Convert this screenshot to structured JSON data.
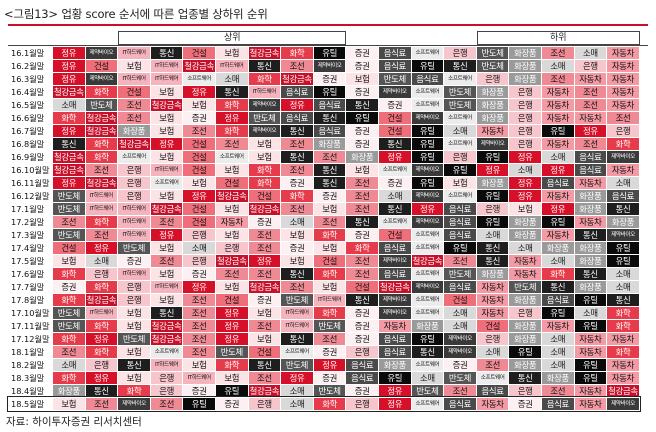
{
  "title": "<그림13> 업황 score 순서에 따른 업종별 상하위 순위",
  "top_label": "상위",
  "bottom_label": "하위",
  "source": "자료: 하이투자증권 리서치센터",
  "sector_colors": {
    "정유": "#d7102a",
    "화학": "#e63b4a",
    "제약바이오": "#3a3a3a",
    "IT하드웨어": "#f5b3bd",
    "통신": "#1e1e1e",
    "건설": "#ee6e7a",
    "보험": "#fbe3e6",
    "철강금속": "#c7102a",
    "유틸": "#0a0a0a",
    "증권": "#fdf0f2",
    "음식료": "#4a4a4a",
    "소프트웨어": "#ececec",
    "은행": "#f7c6cd",
    "반도체": "#555555",
    "화장품": "#9a9a9a",
    "조선": "#ef8a95",
    "소매": "#d9d9d9",
    "자동차": "#f39aa5"
  },
  "chart_data": {
    "type": "table",
    "title": "<그림13> 업황 score 순서에 따른 업종별 상하위 순위",
    "columns_note": "상위 → 하위",
    "rows": [
      {
        "month": "16.1월말",
        "ranks": [
          "정유",
          "제약바이오",
          "IT하드웨어",
          "통신",
          "건설",
          "보험",
          "철강금속",
          "화학",
          "유틸",
          "증권",
          "음식료",
          "소프트웨어",
          "은행",
          "반도체",
          "화장품",
          "조선",
          "소매",
          "자동차"
        ]
      },
      {
        "month": "16.2월말",
        "ranks": [
          "정유",
          "건설",
          "보험",
          "IT하드웨어",
          "철강금속",
          "IT하드웨어",
          "통신",
          "조선",
          "제약바이오",
          "증권",
          "음식료",
          "유틸",
          "통신",
          "반도체",
          "화장품",
          "소매",
          "은행",
          "자동차"
        ]
      },
      {
        "month": "16.3월말",
        "ranks": [
          "정유",
          "제약바이오",
          "IT하드웨어",
          "IT하드웨어",
          "소프트웨어",
          "소매",
          "화학",
          "철강금속",
          "증권",
          "보험",
          "반도체",
          "음식료",
          "소프트웨어",
          "은행",
          "화장품",
          "조선",
          "자동차",
          "자동차"
        ]
      },
      {
        "month": "16.4월말",
        "ranks": [
          "철강금속",
          "화학",
          "건설",
          "보험",
          "정유",
          "통신",
          "IT하드웨어",
          "음식료",
          "유틸",
          "증권",
          "제약바이오",
          "소프트웨어",
          "반도체",
          "화장품",
          "은행",
          "자동차",
          "조선",
          "자동차"
        ]
      },
      {
        "month": "16.5월말",
        "ranks": [
          "소매",
          "반도체",
          "조선",
          "철강금속",
          "보험",
          "화학",
          "제약바이오",
          "정유",
          "음식료",
          "통신",
          "증권",
          "소프트웨어",
          "반도체",
          "화장품",
          "은행",
          "자동차",
          "조선",
          "자동차"
        ]
      },
      {
        "month": "16.6월말",
        "ranks": [
          "화학",
          "철강금속",
          "조선",
          "보험",
          "증권",
          "정유",
          "반도체",
          "음식료",
          "통신",
          "유틸",
          "건설",
          "제약바이오",
          "소프트웨어",
          "화장품",
          "은행",
          "자동차",
          "자동차",
          "조선"
        ]
      },
      {
        "month": "16.7월말",
        "ranks": [
          "정유",
          "철강금속",
          "화장품",
          "보험",
          "조선",
          "화학",
          "제약바이오",
          "통신",
          "음식료",
          "증권",
          "건설",
          "유틸",
          "소매",
          "자동차",
          "은행",
          "유틸",
          "정유",
          "은행"
        ]
      },
      {
        "month": "16.8월말",
        "ranks": [
          "통신",
          "화학",
          "철강금속",
          "정유",
          "건설",
          "조선",
          "보험",
          "조선",
          "화장품",
          "증권",
          "통신",
          "유틸",
          "소프트웨어",
          "제약바이오",
          "은행",
          "자동차",
          "조선",
          "화학"
        ]
      },
      {
        "month": "16.9월말",
        "ranks": [
          "철강금속",
          "화학",
          "소프트웨어",
          "보험",
          "건설",
          "소프트웨어",
          "보험",
          "통신",
          "조선",
          "화장품",
          "정유",
          "유틸",
          "은행",
          "유틸",
          "정유",
          "소매",
          "음식료",
          "제약바이오"
        ]
      },
      {
        "month": "16.10월말",
        "ranks": [
          "철강금속",
          "조선",
          "은행",
          "IT하드웨어",
          "건설",
          "보험",
          "화학",
          "조선",
          "통신",
          "보험",
          "소프트웨어",
          "제약바이오",
          "유틸",
          "정유",
          "소매",
          "정유",
          "음식료",
          "자동차"
        ]
      },
      {
        "month": "16.11월말",
        "ranks": [
          "정유",
          "철강금속",
          "은행",
          "소프트웨어",
          "보험",
          "건설",
          "화학",
          "증권",
          "통신",
          "조선",
          "증권",
          "유틸",
          "보험",
          "화장품",
          "정유",
          "음식료",
          "자동차",
          "소매"
        ]
      },
      {
        "month": "16.12월말",
        "ranks": [
          "반도체",
          "IT하드웨어",
          "은행",
          "보험",
          "정유",
          "철강금속",
          "건설",
          "화학",
          "증권",
          "조선",
          "소매",
          "제약바이오",
          "소프트웨어",
          "유틸",
          "정유",
          "자동차",
          "화장품",
          "음식료"
        ]
      },
      {
        "month": "17.1월말",
        "ranks": [
          "반도체",
          "IT하드웨어",
          "IT하드웨어",
          "철강금속",
          "건설",
          "보험",
          "철강금속",
          "조선",
          "보험",
          "조선",
          "통신",
          "정유",
          "음식료",
          "은행",
          "보험",
          "정유",
          "화장품",
          "통신"
        ]
      },
      {
        "month": "17.2월말",
        "ranks": [
          "조선",
          "화학",
          "IT하드웨어",
          "조선",
          "건설",
          "자동차",
          "증권",
          "소매",
          "조선",
          "통신",
          "소프트웨어",
          "제약바이오",
          "음식료",
          "유틸",
          "화장품",
          "유틸",
          "자동차",
          "화장품"
        ]
      },
      {
        "month": "17.3월말",
        "ranks": [
          "반도체",
          "조선",
          "IT하드웨어",
          "정유",
          "은행",
          "보험",
          "조선",
          "보험",
          "화학",
          "증권",
          "건설",
          "소프트웨어",
          "음식료",
          "소매",
          "화장품",
          "자동차",
          "통신",
          "제약바이오"
        ]
      },
      {
        "month": "17.4월말",
        "ranks": [
          "건설",
          "정유",
          "반도체",
          "보험",
          "소매",
          "은행",
          "조선",
          "증권",
          "보험",
          "화학",
          "음식료",
          "소프트웨어",
          "유틸",
          "통신",
          "소매",
          "화장품",
          "화장품",
          "유틸"
        ]
      },
      {
        "month": "17.5월말",
        "ranks": [
          "보험",
          "소매",
          "증권",
          "조선",
          "은행",
          "철강금속",
          "정유",
          "보험",
          "건설",
          "조선",
          "제약바이오",
          "철강금속",
          "조선",
          "통신",
          "자동차",
          "소매",
          "화장품",
          "유틸"
        ]
      },
      {
        "month": "17.6월말",
        "ranks": [
          "화학",
          "은행",
          "IT하드웨어",
          "보험",
          "증권",
          "조선",
          "조선",
          "통신",
          "화학",
          "조선",
          "음식료",
          "소프트웨어",
          "반도체",
          "화장품",
          "자동차",
          "화학",
          "통신",
          "소매"
        ]
      },
      {
        "month": "17.7월말",
        "ranks": [
          "증권",
          "화학",
          "은행",
          "IT하드웨어",
          "정유",
          "보험",
          "철강금속",
          "조선",
          "보험",
          "건설",
          "철강금속",
          "제약바이오",
          "음식료",
          "자동차",
          "반도체",
          "통신",
          "화장품",
          "소매"
        ]
      },
      {
        "month": "17.8월말",
        "ranks": [
          "화학",
          "철강금속",
          "은행",
          "보험",
          "조선",
          "건설",
          "증권",
          "반도체",
          "IT하드웨어",
          "통신",
          "제약바이오",
          "소프트웨어",
          "건설",
          "자동차",
          "화장품",
          "음식료",
          "유틸",
          "통신"
        ]
      },
      {
        "month": "17.10월말",
        "ranks": [
          "반도체",
          "IT하드웨어",
          "보험",
          "통신",
          "조선",
          "정유",
          "보험",
          "IT하드웨어",
          "화학",
          "증권",
          "제약바이오",
          "소프트웨어",
          "소매",
          "자동차",
          "은행",
          "유틸",
          "소매",
          "화학"
        ]
      },
      {
        "month": "17.11월말",
        "ranks": [
          "반도체",
          "화학",
          "보험",
          "철강금속",
          "조선",
          "정유",
          "조선",
          "IT하드웨어",
          "반도체",
          "증권",
          "자동차",
          "화장품",
          "소매",
          "건설",
          "화장품",
          "자동차",
          "유틸",
          "화학"
        ]
      },
      {
        "month": "17.12월말",
        "ranks": [
          "화학",
          "정유",
          "반도체",
          "철강금속",
          "조선",
          "정유",
          "보험",
          "통신",
          "조선",
          "증권",
          "음식료",
          "유틸",
          "제약바이오",
          "은행",
          "화장품",
          "소매",
          "자동차",
          "자동차"
        ]
      },
      {
        "month": "18.1월말",
        "ranks": [
          "조선",
          "화학",
          "보험",
          "소프트웨어",
          "조선",
          "반도체",
          "건설",
          "소프트웨어",
          "증권",
          "은행",
          "음식료",
          "통신",
          "제약바이오",
          "소매",
          "유틸",
          "소매",
          "자동차",
          "화학"
        ]
      },
      {
        "month": "18.2월말",
        "ranks": [
          "소매",
          "은행",
          "통신",
          "IT하드웨어",
          "보험",
          "화학",
          "통신",
          "반도체",
          "정유",
          "음식료",
          "화장품",
          "소프트웨어",
          "증권",
          "조선",
          "화장품",
          "소매",
          "유틸",
          "자동차"
        ]
      },
      {
        "month": "18.3월말",
        "ranks": [
          "화학",
          "정유",
          "보험",
          "은행",
          "IT하드웨어",
          "보험",
          "조선",
          "정유",
          "증권",
          "음식료",
          "유틸",
          "소매",
          "반도체",
          "소프트웨어",
          "통신",
          "화장품",
          "유틸",
          "자동차"
        ]
      },
      {
        "month": "18.4월말",
        "ranks": [
          "화장품",
          "통신",
          "화학",
          "은행",
          "증권",
          "유틸",
          "철강금속",
          "소매",
          "반도체",
          "증권",
          "정유",
          "반도체",
          "조선",
          "음식료",
          "은행",
          "조선",
          "자동차",
          "철강금속"
        ]
      },
      {
        "month": "18.5월말",
        "ranks": [
          "보험",
          "조선",
          "제약바이오",
          "조선",
          "유틸",
          "증권",
          "은행",
          "소매",
          "화학",
          "은행",
          "정유",
          "소프트웨어",
          "음식료",
          "자동차",
          "증권",
          "음식료",
          "자동차",
          "제약바이오"
        ]
      }
    ]
  }
}
